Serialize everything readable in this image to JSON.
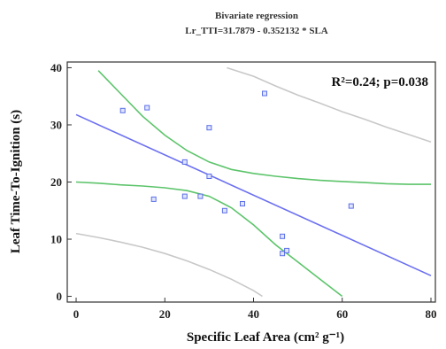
{
  "chart_data": {
    "type": "scatter",
    "title": "Bivariate regression",
    "subtitle": "Lr_TTI=31.7879 - 0.352132 * SLA",
    "xlabel": "Specific Leaf Area (cm² g⁻¹)",
    "ylabel": "Leaf Time-To-Ignition (s)",
    "annotation": "R²=0.24; p=0.038",
    "xlim": [
      -2,
      81
    ],
    "ylim": [
      -1,
      41
    ],
    "xticks": [
      0,
      20,
      40,
      60,
      80
    ],
    "yticks": [
      0,
      10,
      20,
      30,
      40
    ],
    "grid": false,
    "points": {
      "x": [
        10.5,
        16,
        17.5,
        24.5,
        24.5,
        28,
        30,
        30,
        33.5,
        37.5,
        42.5,
        46.5,
        46.5,
        47.5,
        62
      ],
      "y": [
        32.5,
        33,
        17,
        23.5,
        17.5,
        17.5,
        29.5,
        21,
        15,
        16.2,
        35.5,
        10.5,
        7.5,
        8,
        15.8
      ]
    },
    "regression": {
      "intercept": 31.7879,
      "slope": -0.352132
    },
    "confidence_band": {
      "upper": {
        "x": [
          5,
          10,
          15,
          20,
          25,
          30,
          35,
          40,
          45,
          50,
          55,
          60,
          65,
          70,
          75,
          80
        ],
        "y": [
          39.5,
          35.5,
          31.5,
          28.2,
          25.5,
          23.5,
          22.2,
          21.5,
          21,
          20.6,
          20.3,
          20.1,
          19.9,
          19.7,
          19.6,
          19.6
        ]
      },
      "lower": {
        "x": [
          0,
          5,
          10,
          15,
          20,
          25,
          30,
          35,
          40,
          45,
          50,
          55,
          60
        ],
        "y": [
          20,
          19.8,
          19.5,
          19.3,
          19,
          18.5,
          17.5,
          15.5,
          12.5,
          9,
          6,
          3,
          0
        ]
      }
    },
    "prediction_band": {
      "upper": {
        "x": [
          34,
          40,
          45,
          50,
          55,
          60,
          65,
          70,
          75,
          80
        ],
        "y": [
          40,
          38.5,
          36.8,
          35.2,
          33.8,
          32.3,
          31,
          29.6,
          28.3,
          27
        ]
      },
      "lower": {
        "x": [
          0,
          5,
          10,
          15,
          20,
          25,
          30,
          35,
          40,
          42
        ],
        "y": [
          11,
          10.3,
          9.5,
          8.6,
          7.5,
          6.2,
          4.7,
          3,
          1,
          0
        ]
      }
    },
    "colors": {
      "points": "#5b6fe8",
      "regression": "#6b6ff0",
      "confidence_band": "#5cc46a",
      "prediction_band": "#c8c8c8",
      "frame": "#333333"
    }
  }
}
